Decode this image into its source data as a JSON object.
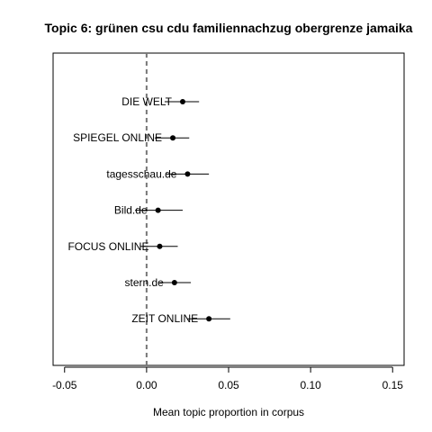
{
  "chart_data": {
    "type": "scatter",
    "title": "Topic 6: grünen csu cdu familiennachzug obergrenze jamaika",
    "xlabel": "Mean topic proportion in corpus",
    "ylabel": "",
    "xlim": [
      -0.057,
      0.157
    ],
    "xticks": [
      -0.05,
      0.0,
      0.05,
      0.1,
      0.15
    ],
    "xtick_labels": [
      "-0.05",
      "0.00",
      "0.05",
      "0.10",
      "0.15"
    ],
    "reference_line": {
      "x": 0.0,
      "style": "dashed"
    },
    "grid": false,
    "points": [
      {
        "label": "DIE WELT",
        "estimate": 0.022,
        "ci_low": 0.011,
        "ci_high": 0.032
      },
      {
        "label": "SPIEGEL ONLINE",
        "estimate": 0.016,
        "ci_low": 0.005,
        "ci_high": 0.026
      },
      {
        "label": "tagesschau.de",
        "estimate": 0.025,
        "ci_low": 0.012,
        "ci_high": 0.038
      },
      {
        "label": "Bild.de",
        "estimate": 0.007,
        "ci_low": -0.007,
        "ci_high": 0.022
      },
      {
        "label": "FOCUS ONLINE",
        "estimate": 0.008,
        "ci_low": -0.004,
        "ci_high": 0.019
      },
      {
        "label": "stern.de",
        "estimate": 0.017,
        "ci_low": 0.008,
        "ci_high": 0.027
      },
      {
        "label": "ZEIT ONLINE",
        "estimate": 0.038,
        "ci_low": 0.025,
        "ci_high": 0.051
      }
    ]
  }
}
